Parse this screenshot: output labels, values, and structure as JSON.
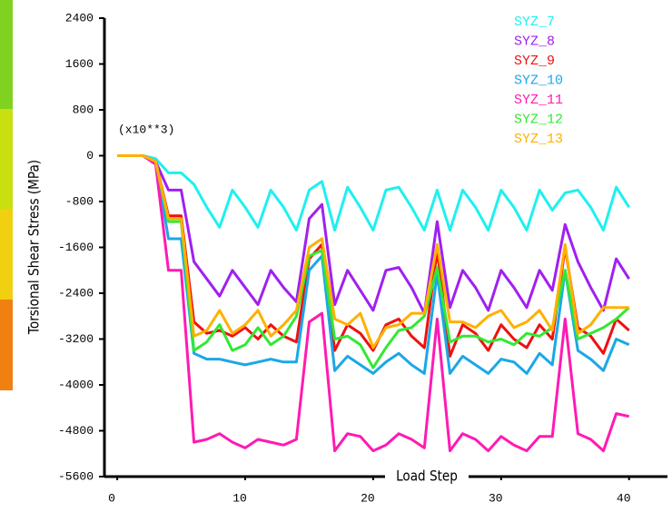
{
  "chart_data": {
    "type": "line",
    "y_label": "Torsional Shear Stress (MPa)",
    "x_label": "Load Step",
    "annotation": "(x10**3)",
    "x": [
      0,
      1,
      2,
      3,
      4,
      5,
      6,
      7,
      8,
      9,
      10,
      11,
      12,
      13,
      14,
      15,
      16,
      17,
      18,
      19,
      20,
      21,
      22,
      23,
      24,
      25,
      26,
      27,
      28,
      29,
      30,
      31,
      32,
      33,
      34,
      35,
      36,
      37,
      38,
      39,
      40
    ],
    "xlim": [
      -1,
      43
    ],
    "xticks": [
      0,
      10,
      20,
      30,
      40
    ],
    "ylim": [
      -5600,
      2400
    ],
    "yticks": [
      2400,
      1600,
      800,
      0,
      -800,
      -1600,
      -2400,
      -3200,
      -4000,
      -4800,
      -5600
    ],
    "legend": "top-right",
    "series": [
      {
        "name": "SYZ_7",
        "color": "#1ef0f0",
        "values": [
          0,
          0,
          0,
          -50,
          -300,
          -300,
          -500,
          -900,
          -1250,
          -600,
          -900,
          -1250,
          -600,
          -900,
          -1300,
          -600,
          -450,
          -1300,
          -550,
          -900,
          -1300,
          -600,
          -550,
          -900,
          -1300,
          -600,
          -1300,
          -600,
          -900,
          -1300,
          -600,
          -900,
          -1300,
          -600,
          -950,
          -650,
          -600,
          -900,
          -1300,
          -550,
          -900
        ]
      },
      {
        "name": "SYZ_8",
        "color": "#a020f0",
        "values": [
          0,
          0,
          0,
          -100,
          -600,
          -600,
          -1850,
          -2150,
          -2450,
          -2000,
          -2300,
          -2600,
          -2000,
          -2300,
          -2550,
          -1100,
          -850,
          -2600,
          -2000,
          -2350,
          -2700,
          -2000,
          -1950,
          -2300,
          -2750,
          -1150,
          -2650,
          -2000,
          -2300,
          -2700,
          -2000,
          -2300,
          -2650,
          -2000,
          -2350,
          -1200,
          -1850,
          -2300,
          -2700,
          -1800,
          -2150
        ]
      },
      {
        "name": "SYZ_9",
        "color": "#f01010",
        "values": [
          0,
          0,
          0,
          -100,
          -1050,
          -1050,
          -2900,
          -3100,
          -3050,
          -3150,
          -3000,
          -3200,
          -2950,
          -3150,
          -3250,
          -1800,
          -1550,
          -3400,
          -2950,
          -3100,
          -3400,
          -2950,
          -2850,
          -3150,
          -3350,
          -1650,
          -3500,
          -2950,
          -3100,
          -3400,
          -2950,
          -3200,
          -3350,
          -2950,
          -3200,
          -1600,
          -3000,
          -3150,
          -3450,
          -2850,
          -3050
        ]
      },
      {
        "name": "SYZ_10",
        "color": "#1ba7e8",
        "values": [
          0,
          0,
          0,
          -100,
          -1450,
          -1450,
          -3450,
          -3550,
          -3550,
          -3600,
          -3650,
          -3600,
          -3550,
          -3600,
          -3600,
          -2000,
          -1750,
          -3750,
          -3500,
          -3650,
          -3800,
          -3600,
          -3450,
          -3650,
          -3800,
          -2050,
          -3800,
          -3500,
          -3650,
          -3800,
          -3550,
          -3600,
          -3800,
          -3450,
          -3650,
          -2000,
          -3400,
          -3550,
          -3750,
          -3200,
          -3300
        ]
      },
      {
        "name": "SYZ_11",
        "color": "#ff1ab3",
        "values": [
          0,
          0,
          0,
          -150,
          -2000,
          -2000,
          -5000,
          -4950,
          -4850,
          -5000,
          -5100,
          -4950,
          -5000,
          -5050,
          -4950,
          -2900,
          -2750,
          -5150,
          -4850,
          -4900,
          -5150,
          -5050,
          -4850,
          -4950,
          -5100,
          -2850,
          -5150,
          -4850,
          -4950,
          -5150,
          -4900,
          -5050,
          -5150,
          -4900,
          -4900,
          -2850,
          -4850,
          -4950,
          -5150,
          -4500,
          -4550
        ]
      },
      {
        "name": "SYZ_12",
        "color": "#33e833",
        "values": [
          0,
          0,
          0,
          -100,
          -1150,
          -1150,
          -3400,
          -3250,
          -2950,
          -3400,
          -3300,
          -3000,
          -3300,
          -3150,
          -2800,
          -1750,
          -1650,
          -3200,
          -3150,
          -3300,
          -3700,
          -3350,
          -3050,
          -3000,
          -2800,
          -1950,
          -3250,
          -3150,
          -3150,
          -3250,
          -3200,
          -3300,
          -3100,
          -3150,
          -3000,
          -2000,
          -3200,
          -3100,
          -3000,
          -2850,
          -2650
        ]
      },
      {
        "name": "SYZ_13",
        "color": "#ffb000",
        "values": [
          0,
          0,
          0,
          -100,
          -1100,
          -1100,
          -3150,
          -3050,
          -2700,
          -3100,
          -2950,
          -2700,
          -3150,
          -2950,
          -2700,
          -1600,
          -1450,
          -2850,
          -2950,
          -2750,
          -3350,
          -3000,
          -2950,
          -2750,
          -2750,
          -1550,
          -2900,
          -2900,
          -3000,
          -2800,
          -2700,
          -3000,
          -2900,
          -2700,
          -3050,
          -1550,
          -3100,
          -2950,
          -2650,
          -2650,
          -2650
        ]
      }
    ]
  }
}
